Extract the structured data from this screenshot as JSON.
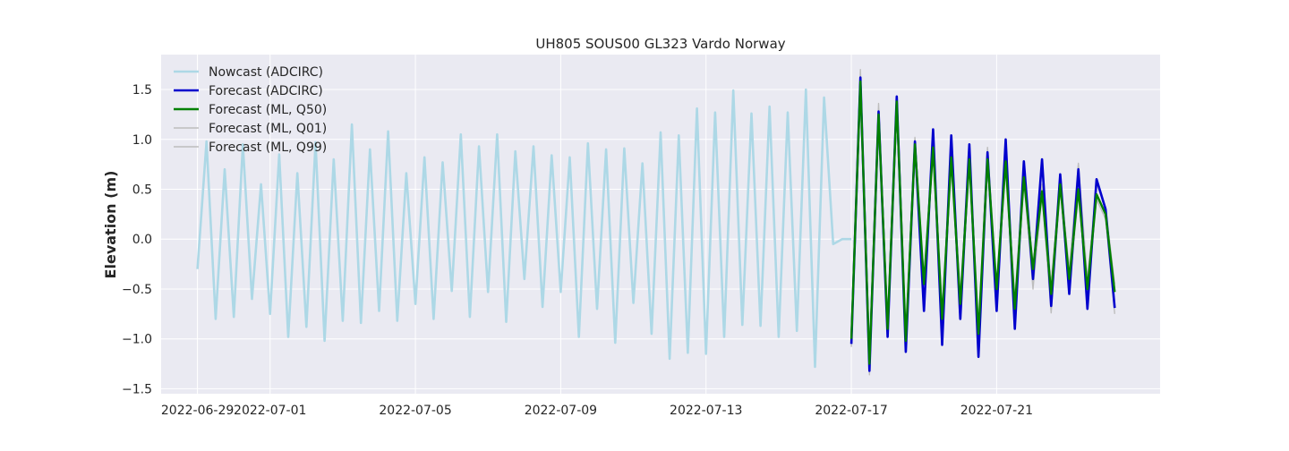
{
  "chart_data": {
    "type": "line",
    "title": "UH805 SOUS00 GL323 Vardo Norway",
    "xlabel": "",
    "ylabel": "Elevation (m)",
    "xlim": [
      "2022-06-28T00:00",
      "2022-07-25T12:00"
    ],
    "ylim": [
      -1.55,
      1.85
    ],
    "x_tick_labels": [
      "2022-06-29",
      "2022-07-01",
      "2022-07-05",
      "2022-07-09",
      "2022-07-13",
      "2022-07-17",
      "2022-07-21"
    ],
    "x_ticks": [
      "2022-06-29",
      "2022-07-01",
      "2022-07-05",
      "2022-07-09",
      "2022-07-13",
      "2022-07-17",
      "2022-07-21"
    ],
    "y_ticks": [
      -1.5,
      -1.0,
      -0.5,
      0.0,
      0.5,
      1.0,
      1.5
    ],
    "y_tick_labels": [
      "−1.5",
      "−1.0",
      "−0.5",
      "0.0",
      "0.5",
      "1.0",
      "1.5"
    ],
    "grid": true,
    "legend_position": "top-left",
    "colors": {
      "background": "#eaeaf2",
      "grid": "#ffffff",
      "nowcast": "#add8e6",
      "forecast_adcirc": "#0000cd",
      "forecast_ml_q50": "#008000",
      "forecast_ml_quantiles": "#bdbdbd"
    },
    "series": [
      {
        "name": "Nowcast (ADCIRC)",
        "x": [
          "2022-06-29T00:00",
          "2022-06-29T06:00",
          "2022-06-29T12:00",
          "2022-06-29T18:00",
          "2022-06-30T00:00",
          "2022-06-30T06:00",
          "2022-06-30T12:00",
          "2022-06-30T18:00",
          "2022-07-01T00:00",
          "2022-07-01T06:00",
          "2022-07-01T12:00",
          "2022-07-01T18:00",
          "2022-07-02T00:00",
          "2022-07-02T06:00",
          "2022-07-02T12:00",
          "2022-07-02T18:00",
          "2022-07-03T00:00",
          "2022-07-03T06:00",
          "2022-07-03T12:00",
          "2022-07-03T18:00",
          "2022-07-04T00:00",
          "2022-07-04T06:00",
          "2022-07-04T12:00",
          "2022-07-04T18:00",
          "2022-07-05T00:00",
          "2022-07-05T06:00",
          "2022-07-05T12:00",
          "2022-07-05T18:00",
          "2022-07-06T00:00",
          "2022-07-06T06:00",
          "2022-07-06T12:00",
          "2022-07-06T18:00",
          "2022-07-07T00:00",
          "2022-07-07T06:00",
          "2022-07-07T12:00",
          "2022-07-07T18:00",
          "2022-07-08T00:00",
          "2022-07-08T06:00",
          "2022-07-08T12:00",
          "2022-07-08T18:00",
          "2022-07-09T00:00",
          "2022-07-09T06:00",
          "2022-07-09T12:00",
          "2022-07-09T18:00",
          "2022-07-10T00:00",
          "2022-07-10T06:00",
          "2022-07-10T12:00",
          "2022-07-10T18:00",
          "2022-07-11T00:00",
          "2022-07-11T06:00",
          "2022-07-11T12:00",
          "2022-07-11T18:00",
          "2022-07-12T00:00",
          "2022-07-12T06:00",
          "2022-07-12T12:00",
          "2022-07-12T18:00",
          "2022-07-13T00:00",
          "2022-07-13T06:00",
          "2022-07-13T12:00",
          "2022-07-13T18:00",
          "2022-07-14T00:00",
          "2022-07-14T06:00",
          "2022-07-14T12:00",
          "2022-07-14T18:00",
          "2022-07-15T00:00",
          "2022-07-15T06:00",
          "2022-07-15T12:00",
          "2022-07-15T18:00",
          "2022-07-16T00:00",
          "2022-07-16T06:00",
          "2022-07-16T12:00",
          "2022-07-16T18:00",
          "2022-07-17T00:00"
        ],
        "y": [
          -0.3,
          0.98,
          -0.8,
          0.7,
          -0.78,
          0.95,
          -0.6,
          0.55,
          -0.75,
          0.85,
          -0.98,
          0.66,
          -0.88,
          0.97,
          -1.02,
          0.8,
          -0.82,
          1.15,
          -0.84,
          0.9,
          -0.72,
          1.08,
          -0.82,
          0.66,
          -0.65,
          0.82,
          -0.8,
          0.77,
          -0.52,
          1.05,
          -0.78,
          0.93,
          -0.53,
          1.05,
          -0.83,
          0.88,
          -0.4,
          0.93,
          -0.68,
          0.84,
          -0.53,
          0.82,
          -0.98,
          0.96,
          -0.7,
          0.9,
          -1.04,
          0.91,
          -0.64,
          0.76,
          -0.95,
          1.07,
          -1.2,
          1.04,
          -1.14,
          1.31,
          -1.15,
          1.27,
          -0.98,
          1.49,
          -0.86,
          1.26,
          -0.87,
          1.33,
          -0.98,
          1.27,
          -0.92,
          1.5,
          -1.28,
          1.42,
          -0.05,
          0.0,
          0.0
        ]
      },
      {
        "name": "Forecast (ADCIRC)",
        "x": [
          "2022-07-17T00:00",
          "2022-07-17T06:00",
          "2022-07-17T12:00",
          "2022-07-17T18:00",
          "2022-07-18T00:00",
          "2022-07-18T06:00",
          "2022-07-18T12:00",
          "2022-07-18T18:00",
          "2022-07-19T00:00",
          "2022-07-19T06:00",
          "2022-07-19T12:00",
          "2022-07-19T18:00",
          "2022-07-20T00:00",
          "2022-07-20T06:00",
          "2022-07-20T12:00",
          "2022-07-20T18:00",
          "2022-07-21T00:00",
          "2022-07-21T06:00",
          "2022-07-21T12:00",
          "2022-07-21T18:00",
          "2022-07-22T00:00",
          "2022-07-22T06:00",
          "2022-07-22T12:00",
          "2022-07-22T18:00",
          "2022-07-23T00:00",
          "2022-07-23T06:00",
          "2022-07-23T12:00",
          "2022-07-23T18:00",
          "2022-07-24T00:00",
          "2022-07-24T06:00"
        ],
        "y": [
          -1.05,
          1.62,
          -1.32,
          1.28,
          -0.98,
          1.43,
          -1.13,
          0.98,
          -0.72,
          1.1,
          -1.06,
          1.04,
          -0.8,
          0.95,
          -1.18,
          0.87,
          -0.72,
          1.0,
          -0.9,
          0.78,
          -0.4,
          0.8,
          -0.67,
          0.65,
          -0.55,
          0.7,
          -0.7,
          0.6,
          0.3,
          -0.69
        ]
      },
      {
        "name": "Forecast (ML, Q50)",
        "x": [
          "2022-07-17T00:00",
          "2022-07-17T06:00",
          "2022-07-17T12:00",
          "2022-07-17T18:00",
          "2022-07-18T00:00",
          "2022-07-18T06:00",
          "2022-07-18T12:00",
          "2022-07-18T18:00",
          "2022-07-19T00:00",
          "2022-07-19T06:00",
          "2022-07-19T12:00",
          "2022-07-19T18:00",
          "2022-07-20T00:00",
          "2022-07-20T06:00",
          "2022-07-20T12:00",
          "2022-07-20T18:00",
          "2022-07-21T00:00",
          "2022-07-21T06:00",
          "2022-07-21T12:00",
          "2022-07-21T18:00",
          "2022-07-22T00:00",
          "2022-07-22T06:00",
          "2022-07-22T12:00",
          "2022-07-22T18:00",
          "2022-07-23T00:00",
          "2022-07-23T06:00",
          "2022-07-23T12:00",
          "2022-07-23T18:00",
          "2022-07-24T00:00",
          "2022-07-24T06:00"
        ],
        "y": [
          -1.0,
          1.58,
          -1.25,
          1.25,
          -0.9,
          1.38,
          -1.02,
          0.95,
          -0.45,
          0.92,
          -0.8,
          0.82,
          -0.65,
          0.8,
          -0.95,
          0.8,
          -0.5,
          0.78,
          -0.7,
          0.62,
          -0.3,
          0.48,
          -0.55,
          0.55,
          -0.4,
          0.5,
          -0.5,
          0.45,
          0.25,
          -0.53
        ]
      },
      {
        "name": "Forecast (ML, Q01)",
        "x": [
          "2022-07-17T00:00",
          "2022-07-17T06:00",
          "2022-07-17T12:00",
          "2022-07-17T18:00",
          "2022-07-18T00:00",
          "2022-07-18T06:00",
          "2022-07-18T12:00",
          "2022-07-18T18:00",
          "2022-07-19T00:00",
          "2022-07-19T06:00",
          "2022-07-19T12:00",
          "2022-07-19T18:00",
          "2022-07-20T00:00",
          "2022-07-20T06:00",
          "2022-07-20T12:00",
          "2022-07-20T18:00",
          "2022-07-21T00:00",
          "2022-07-21T06:00",
          "2022-07-21T12:00",
          "2022-07-21T18:00",
          "2022-07-22T00:00",
          "2022-07-22T06:00",
          "2022-07-22T12:00",
          "2022-07-22T18:00",
          "2022-07-23T00:00",
          "2022-07-23T06:00",
          "2022-07-23T12:00",
          "2022-07-23T18:00",
          "2022-07-24T00:00",
          "2022-07-24T06:00"
        ],
        "y": [
          -1.08,
          1.55,
          -1.36,
          1.22,
          -0.95,
          1.33,
          -1.1,
          0.92,
          -0.55,
          0.88,
          -0.9,
          0.78,
          -0.75,
          0.78,
          -1.05,
          0.78,
          -0.62,
          0.75,
          -0.8,
          0.6,
          -0.5,
          0.45,
          -0.74,
          0.52,
          -0.55,
          0.48,
          -0.6,
          0.4,
          0.2,
          -0.75
        ]
      },
      {
        "name": "Forecast (ML, Q99)",
        "x": [
          "2022-07-17T00:00",
          "2022-07-17T06:00",
          "2022-07-17T12:00",
          "2022-07-17T18:00",
          "2022-07-18T00:00",
          "2022-07-18T06:00",
          "2022-07-18T12:00",
          "2022-07-18T18:00",
          "2022-07-19T00:00",
          "2022-07-19T06:00",
          "2022-07-19T12:00",
          "2022-07-19T18:00",
          "2022-07-20T00:00",
          "2022-07-20T06:00",
          "2022-07-20T12:00",
          "2022-07-20T18:00",
          "2022-07-21T00:00",
          "2022-07-21T06:00",
          "2022-07-21T12:00",
          "2022-07-21T18:00",
          "2022-07-22T00:00",
          "2022-07-22T06:00",
          "2022-07-22T12:00",
          "2022-07-22T18:00",
          "2022-07-23T00:00",
          "2022-07-23T06:00",
          "2022-07-23T12:00",
          "2022-07-23T18:00",
          "2022-07-24T00:00",
          "2022-07-24T06:00"
        ],
        "y": [
          -0.92,
          1.7,
          -1.2,
          1.36,
          -0.85,
          1.4,
          -0.98,
          1.02,
          -0.4,
          0.94,
          -0.72,
          0.9,
          -0.55,
          0.85,
          -0.88,
          0.92,
          -0.45,
          0.82,
          -0.6,
          0.7,
          -0.25,
          0.55,
          -0.45,
          0.62,
          -0.3,
          0.76,
          -0.4,
          0.55,
          0.32,
          -0.45
        ]
      }
    ]
  }
}
